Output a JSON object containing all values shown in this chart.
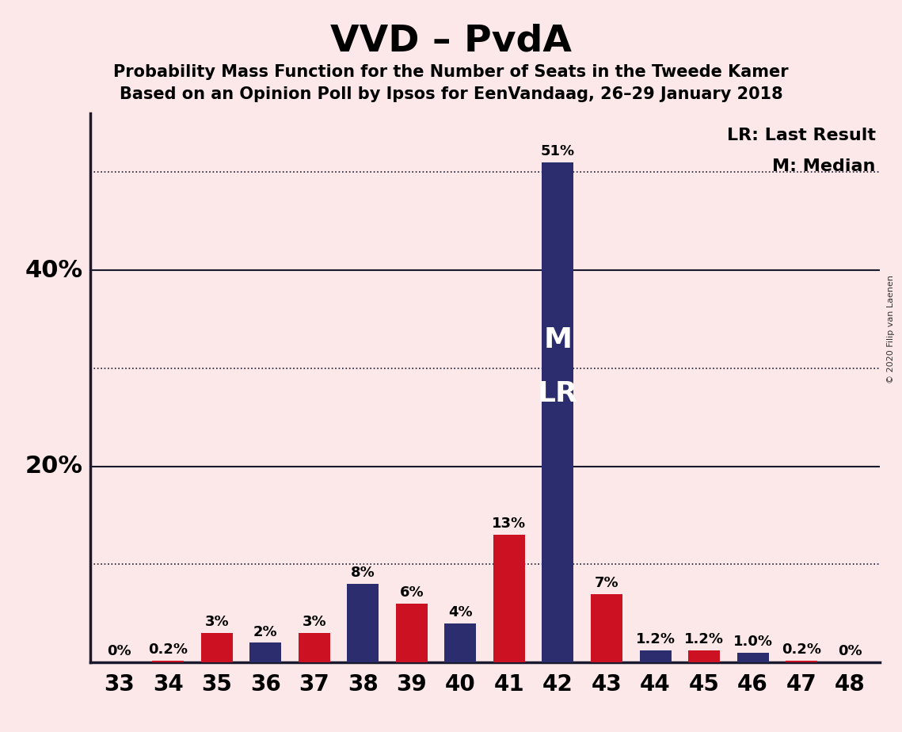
{
  "title": "VVD – PvdA",
  "subtitle1": "Probability Mass Function for the Number of Seats in the Tweede Kamer",
  "subtitle2": "Based on an Opinion Poll by Ipsos for EenVandaag, 26–29 January 2018",
  "copyright": "© 2020 Filip van Laenen",
  "legend_lr": "LR: Last Result",
  "legend_m": "M: Median",
  "background_color": "#fce8e8",
  "navy_color": "#2b2d6e",
  "red_color": "#cc1122",
  "seats": [
    33,
    34,
    35,
    36,
    37,
    38,
    39,
    40,
    41,
    42,
    43,
    44,
    45,
    46,
    47,
    48
  ],
  "values": [
    0.0,
    0.2,
    3.0,
    2.0,
    3.0,
    8.0,
    6.0,
    4.0,
    13.0,
    51.0,
    7.0,
    1.2,
    1.2,
    1.0,
    0.2,
    0.0
  ],
  "colors": [
    "navy",
    "red",
    "red",
    "navy",
    "red",
    "navy",
    "red",
    "navy",
    "red",
    "navy",
    "red",
    "navy",
    "red",
    "navy",
    "red",
    "navy"
  ],
  "labels": [
    "0%",
    "0.2%",
    "3%",
    "2%",
    "3%",
    "8%",
    "6%",
    "4%",
    "13%",
    "51%",
    "7%",
    "1.2%",
    "1.2%",
    "1.0%",
    "0.2%",
    "0%"
  ],
  "median_seat": 42,
  "lr_seat": 42,
  "median_label": "M",
  "lr_label": "LR",
  "ylim": [
    0,
    56
  ],
  "solid_yticks": [
    20,
    40
  ],
  "solid_ytick_labels": [
    "20%",
    "40%"
  ],
  "dotted_yticks": [
    10,
    30,
    50
  ],
  "bar_width": 0.65,
  "title_fontsize": 34,
  "subtitle_fontsize": 15,
  "ylabel_fontsize": 22,
  "xlabel_fontsize": 20,
  "label_fontsize": 13,
  "legend_fontsize": 16,
  "ml_fontsize": 26
}
